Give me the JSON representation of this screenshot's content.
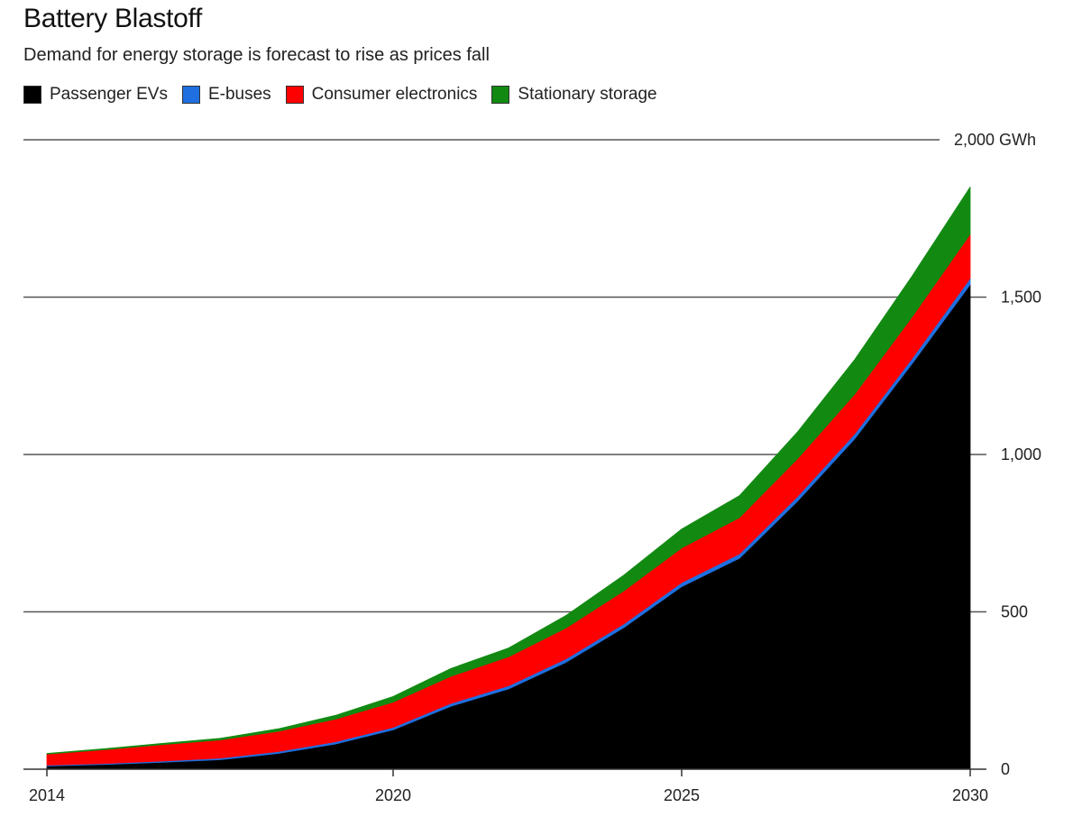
{
  "chart_data": {
    "type": "area",
    "stacked": true,
    "title": "Battery Blastoff",
    "subtitle": "Demand for energy storage is forecast to rise as prices fall",
    "xlabel": "",
    "ylabel": "",
    "unit": "GWh",
    "x": [
      2014,
      2015,
      2016,
      2017,
      2018,
      2019,
      2020,
      2021,
      2022,
      2023,
      2024,
      2025,
      2026,
      2027,
      2028,
      2029,
      2030
    ],
    "xlim": [
      2014,
      2030
    ],
    "ylim": [
      0,
      2000
    ],
    "x_ticks": [
      {
        "value": 2014,
        "label": "2014"
      },
      {
        "value": 2020,
        "label": "2020"
      },
      {
        "value": 2025,
        "label": "2025"
      },
      {
        "value": 2030,
        "label": "2030"
      }
    ],
    "y_ticks": [
      {
        "value": 0,
        "label": "0"
      },
      {
        "value": 500,
        "label": "500"
      },
      {
        "value": 1000,
        "label": "1,000"
      },
      {
        "value": 1500,
        "label": "1,500"
      },
      {
        "value": 2000,
        "label": "2,000 GWh"
      }
    ],
    "grid": true,
    "legend_position": "top-left",
    "series": [
      {
        "name": "Passenger EVs",
        "color": "#000000",
        "values": [
          10,
          15,
          22,
          30,
          50,
          80,
          125,
          200,
          255,
          340,
          450,
          580,
          670,
          850,
          1050,
          1290,
          1540
        ]
      },
      {
        "name": "E-buses",
        "color": "#1f6fe0",
        "values": [
          3,
          3,
          4,
          5,
          6,
          7,
          8,
          9,
          10,
          11,
          12,
          13,
          14,
          15,
          16,
          17,
          20
        ]
      },
      {
        "name": "Consumer electronics",
        "color": "#ff0000",
        "values": [
          35,
          44,
          52,
          58,
          64,
          72,
          80,
          86,
          92,
          98,
          105,
          110,
          115,
          120,
          126,
          132,
          140
        ]
      },
      {
        "name": "Stationary storage",
        "color": "#128a12",
        "values": [
          2,
          3,
          4,
          5,
          8,
          12,
          18,
          25,
          28,
          40,
          50,
          60,
          70,
          85,
          110,
          130,
          150
        ]
      }
    ]
  }
}
